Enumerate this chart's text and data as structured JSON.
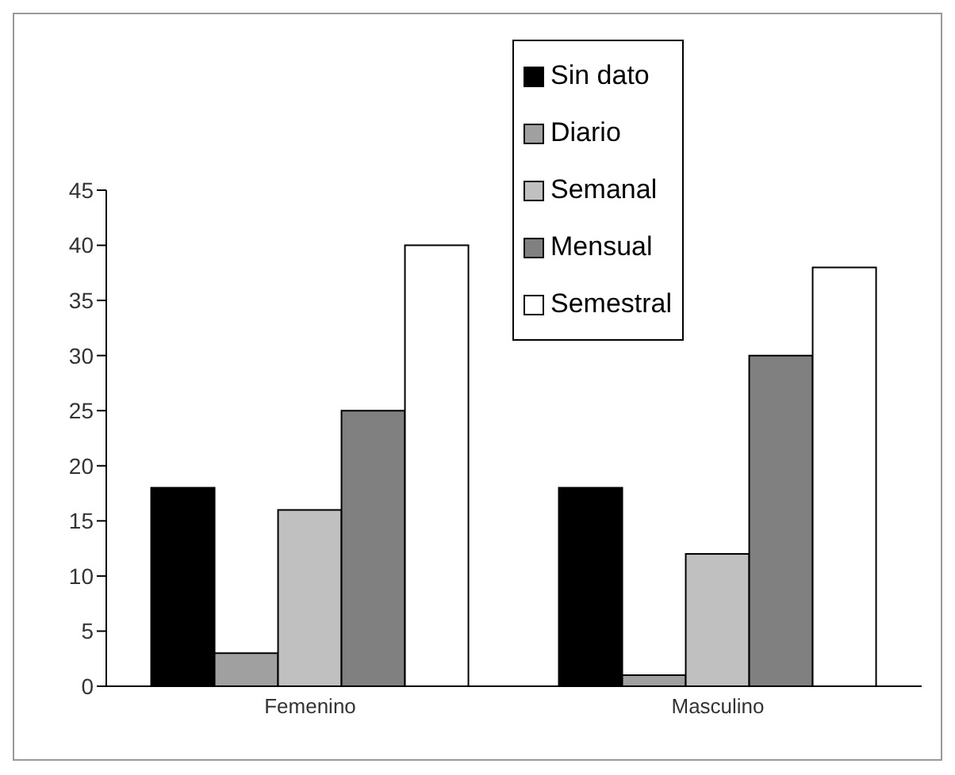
{
  "chart_data": {
    "type": "bar",
    "categories": [
      "Femenino",
      "Masculino"
    ],
    "series": [
      {
        "name": "Sin dato",
        "color": "#000000",
        "values": [
          18,
          18
        ]
      },
      {
        "name": "Diario",
        "color": "#a0a0a0",
        "values": [
          3,
          1
        ]
      },
      {
        "name": "Semanal",
        "color": "#c0c0c0",
        "values": [
          16,
          12
        ]
      },
      {
        "name": "Mensual",
        "color": "#808080",
        "values": [
          25,
          30
        ]
      },
      {
        "name": "Semestral",
        "color": "#ffffff",
        "values": [
          40,
          38
        ]
      }
    ],
    "ylim": [
      0,
      45
    ],
    "yticks": [
      0,
      5,
      10,
      15,
      20,
      25,
      30,
      35,
      40,
      45
    ],
    "grid": false,
    "legend": "top"
  }
}
